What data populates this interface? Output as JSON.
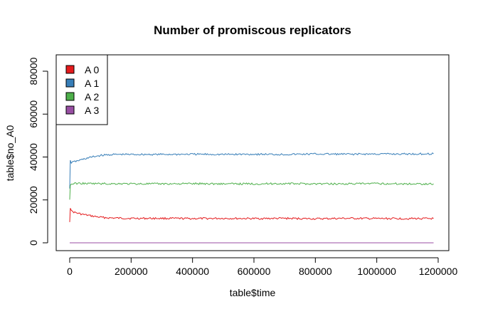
{
  "chart_data": {
    "type": "line",
    "title": "Number of promiscous replicators",
    "xlabel": "table$time",
    "ylabel": "table$no_A0",
    "xlim": [
      0,
      1200000
    ],
    "ylim": [
      0,
      87000
    ],
    "x_ticks": [
      0,
      200000,
      400000,
      600000,
      800000,
      1000000,
      1200000
    ],
    "x_tick_labels": [
      "0",
      "200000",
      "400000",
      "600000",
      "800000",
      "1000000",
      "1200000"
    ],
    "y_ticks": [
      0,
      20000,
      40000,
      60000,
      80000
    ],
    "y_tick_labels": [
      "0",
      "20000",
      "40000",
      "60000",
      "80000"
    ],
    "grid": false,
    "legend_position": "top-left",
    "series": [
      {
        "name": "A 0",
        "color": "#e41a1c",
        "x": [
          0,
          2000,
          5000,
          10000,
          20000,
          40000,
          60000,
          80000,
          100000,
          130000,
          160000,
          200000,
          300000,
          400000,
          500000,
          600000,
          700000,
          800000,
          900000,
          1000000,
          1100000,
          1185000
        ],
        "y": [
          10000,
          16500,
          14800,
          14500,
          14000,
          13300,
          12800,
          12300,
          11900,
          11600,
          11500,
          11400,
          11400,
          11300,
          11400,
          11300,
          11400,
          11200,
          11400,
          11300,
          11300,
          11300
        ]
      },
      {
        "name": "A 1",
        "color": "#377eb8",
        "x": [
          0,
          2000,
          5000,
          10000,
          20000,
          40000,
          60000,
          80000,
          100000,
          130000,
          160000,
          200000,
          300000,
          400000,
          500000,
          600000,
          700000,
          800000,
          900000,
          1000000,
          1100000,
          1185000
        ],
        "y": [
          25000,
          38800,
          37300,
          37600,
          38000,
          38800,
          39600,
          40200,
          40700,
          41100,
          41200,
          41200,
          41200,
          41300,
          41200,
          41300,
          41200,
          41400,
          41300,
          41400,
          41400,
          41500
        ]
      },
      {
        "name": "A 2",
        "color": "#4daf4a",
        "x": [
          0,
          2000,
          5000,
          10000,
          20000,
          40000,
          60000,
          80000,
          100000,
          130000,
          160000,
          200000,
          300000,
          400000,
          500000,
          600000,
          700000,
          800000,
          900000,
          1000000,
          1100000,
          1185000
        ],
        "y": [
          20000,
          27000,
          27300,
          27500,
          27700,
          27700,
          27600,
          27600,
          27600,
          27500,
          27600,
          27500,
          27500,
          27600,
          27500,
          27500,
          27600,
          27500,
          27500,
          27600,
          27500,
          27500
        ]
      },
      {
        "name": "A 3",
        "color": "#984ea3",
        "x": [
          0,
          1185000
        ],
        "y": [
          0,
          0
        ]
      }
    ]
  }
}
